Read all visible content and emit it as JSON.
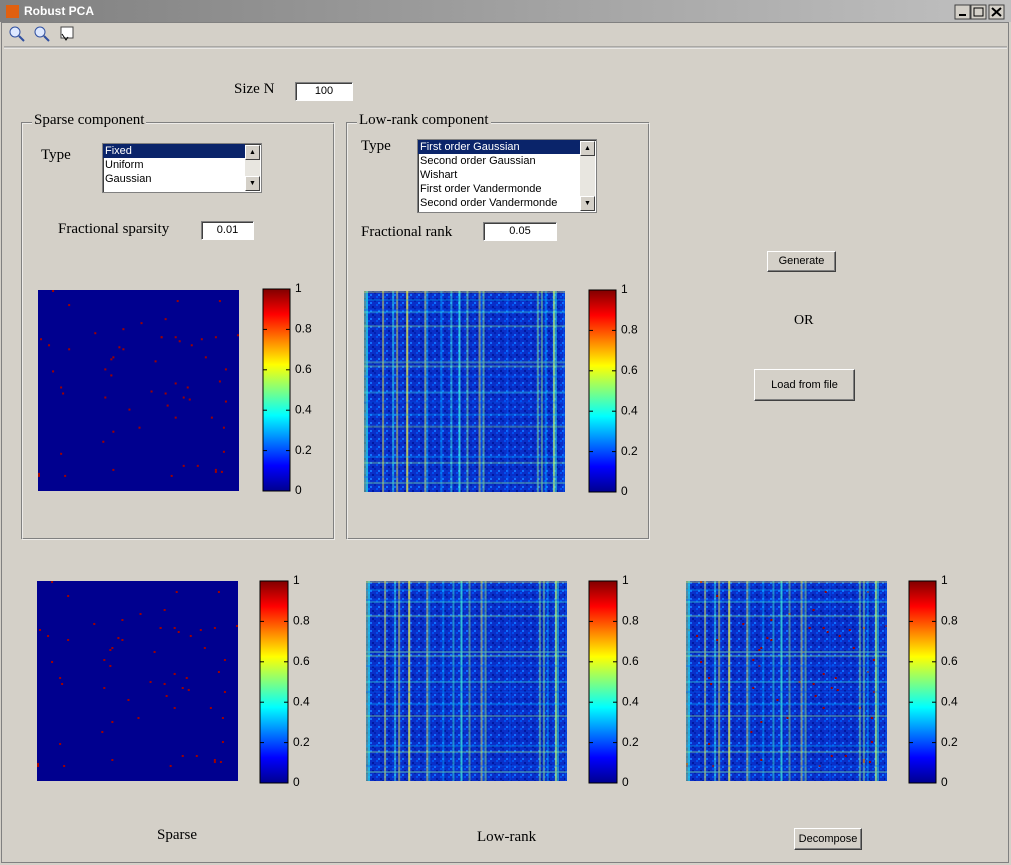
{
  "window": {
    "title": "Robust PCA"
  },
  "size": {
    "label": "Size N",
    "value": "100"
  },
  "sparse_panel": {
    "title": "Sparse component",
    "type_label": "Type",
    "type_options": [
      "Fixed",
      "Uniform",
      "Gaussian"
    ],
    "param_label": "Fractional sparsity",
    "param_value": "0.01"
  },
  "lowrank_panel": {
    "title": "Low-rank component",
    "type_label": "Type",
    "type_options": [
      "First order Gaussian",
      "Second order Gaussian",
      "Wishart",
      "First order Vandermonde",
      "Second order Vandermonde"
    ],
    "param_label": "Fractional rank",
    "param_value": "0.05"
  },
  "buttons": {
    "generate": "Generate",
    "or": "OR",
    "load": "Load from file",
    "decompose": "Decompose"
  },
  "colorbar_ticks": [
    0,
    0.2,
    0.4,
    0.6,
    0.8,
    1
  ],
  "output_labels": {
    "sparse": "Sparse",
    "lowrank": "Low-rank"
  }
}
